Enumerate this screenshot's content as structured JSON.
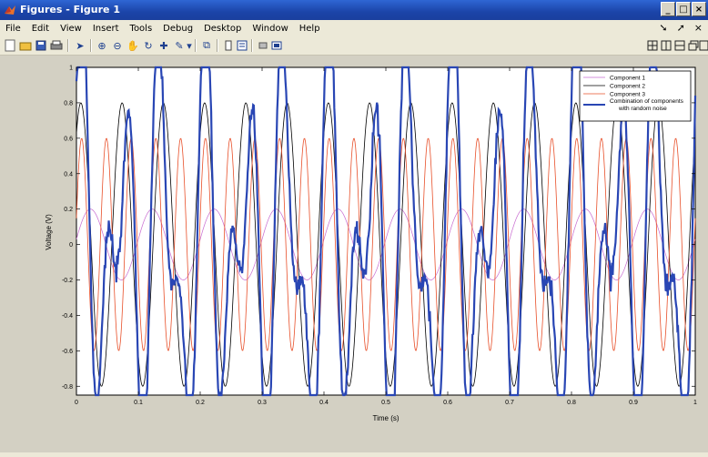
{
  "window": {
    "title": "Figures - Figure 1",
    "min_label": "_",
    "max_label": "□",
    "close_label": "×"
  },
  "menu": {
    "items": [
      "File",
      "Edit",
      "View",
      "Insert",
      "Tools",
      "Debug",
      "Desktop",
      "Window",
      "Help"
    ]
  },
  "toolbar": {
    "icons": [
      "new-figure-icon",
      "open-file-icon",
      "save-icon",
      "print-icon",
      "arrow-pointer-icon",
      "zoom-in-icon",
      "zoom-out-icon",
      "pan-icon",
      "rotate-3d-icon",
      "data-cursor-icon",
      "brush-icon",
      "link-icon",
      "colorbar-icon",
      "legend-icon",
      "hide-plot-tools-icon",
      "show-plot-tools-icon"
    ],
    "dock_icons": [
      "tile-icon",
      "split-vertical-icon",
      "split-horizontal-icon",
      "float-icon",
      "maximize-icon"
    ]
  },
  "chart_data": {
    "type": "line",
    "title": "",
    "xlabel": "Time (s)",
    "ylabel": "Voltage (V)",
    "xlim": [
      0,
      1
    ],
    "ylim": [
      -0.85,
      1.0
    ],
    "xticks": [
      0,
      0.1,
      0.2,
      0.3,
      0.4,
      0.5,
      0.6,
      0.7,
      0.8,
      0.9,
      1
    ],
    "xtick_labels": [
      "0",
      "0.1",
      "0.2",
      "0.3",
      "0.4",
      "0.5",
      "0.6",
      "0.7",
      "0.8",
      "0.9",
      "1"
    ],
    "yticks": [
      -0.8,
      -0.6,
      -0.4,
      -0.2,
      0,
      0.2,
      0.4,
      0.6,
      0.8,
      1
    ],
    "ytick_labels": [
      "-0.8",
      "-0.6",
      "-0.4",
      "-0.2",
      "0",
      "0.2",
      "0.4",
      "0.6",
      "0.8",
      "1"
    ],
    "grid": false,
    "legend_position": "top-right",
    "series": [
      {
        "name": "Component 1",
        "color": "#c86bd0",
        "amplitude": 0.2,
        "frequency_hz": 10,
        "phase": 0.15,
        "width": 0.7
      },
      {
        "name": "Component 2",
        "color": "#000000",
        "amplitude": 0.8,
        "frequency_hz": 15,
        "phase": 0.9,
        "width": 0.8
      },
      {
        "name": "Component 3",
        "color": "#e8502a",
        "amplitude": 0.6,
        "frequency_hz": 25,
        "phase": 0.25,
        "width": 0.8
      },
      {
        "name": "Combination of components with random noise",
        "legend_lines": [
          "Combination of components",
          "with random noise"
        ],
        "color": "#2946b4",
        "noise_std": 0.03,
        "width": 2.2
      }
    ]
  }
}
